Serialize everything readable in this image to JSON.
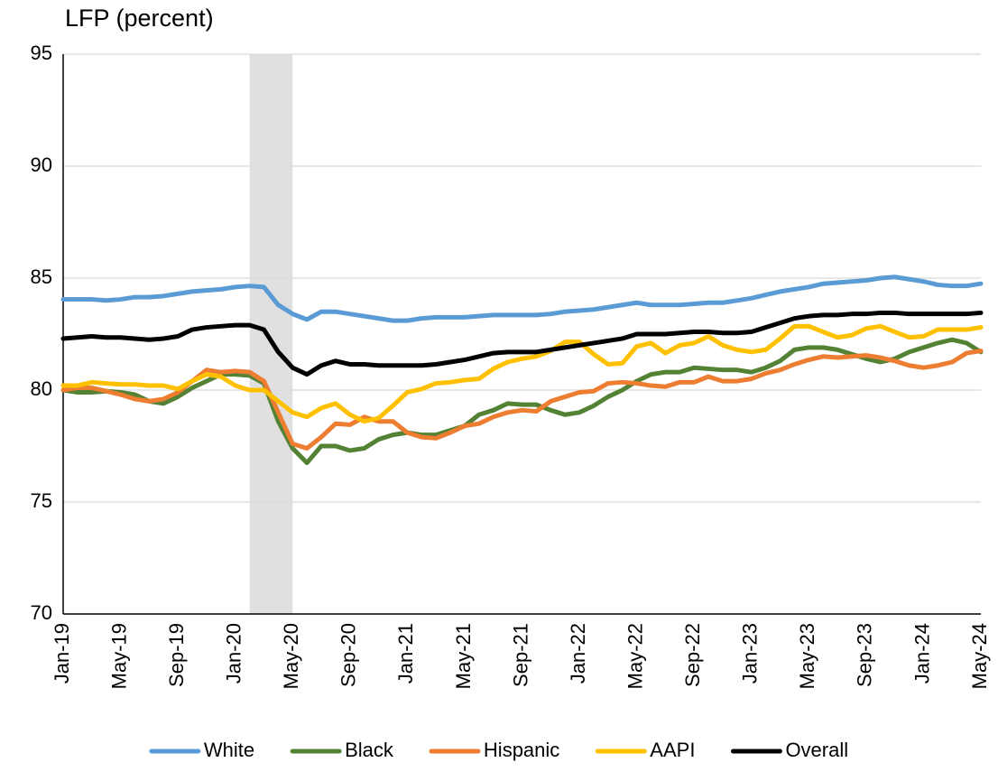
{
  "chart_data": {
    "type": "line",
    "title": "LFP (percent)",
    "categories": [
      "Jan-19",
      null,
      null,
      null,
      "May-19",
      null,
      null,
      null,
      "Sep-19",
      null,
      null,
      null,
      "Jan-20",
      null,
      null,
      null,
      "May-20",
      null,
      null,
      null,
      "Sep-20",
      null,
      null,
      null,
      "Jan-21",
      null,
      null,
      null,
      "May-21",
      null,
      null,
      null,
      "Sep-21",
      null,
      null,
      null,
      "Jan-22",
      null,
      null,
      null,
      "May-22",
      null,
      null,
      null,
      "Sep-22",
      null,
      null,
      null,
      "Jan-23",
      null,
      null,
      null,
      "May-23",
      null,
      null,
      null,
      "Sep-23",
      null,
      null,
      null,
      "Jan-24",
      null,
      null,
      null,
      "May-24"
    ],
    "shaded_range": [
      13,
      16
    ],
    "shade_color": "#e0e0e0",
    "ylim": [
      70,
      95
    ],
    "yticks": [
      70,
      75,
      80,
      85,
      90,
      95
    ],
    "grid": true,
    "legend": "bottom",
    "series": [
      {
        "name": "White",
        "color": "#5b9bd5",
        "values": [
          84.05,
          84.05,
          84.05,
          84.0,
          84.05,
          84.15,
          84.15,
          84.2,
          84.3,
          84.4,
          84.45,
          84.5,
          84.6,
          84.65,
          84.6,
          83.8,
          83.4,
          83.15,
          83.5,
          83.5,
          83.4,
          83.3,
          83.2,
          83.1,
          83.1,
          83.2,
          83.25,
          83.25,
          83.25,
          83.3,
          83.35,
          83.35,
          83.35,
          83.35,
          83.4,
          83.5,
          83.55,
          83.6,
          83.7,
          83.8,
          83.9,
          83.8,
          83.8,
          83.8,
          83.85,
          83.9,
          83.9,
          84.0,
          84.1,
          84.25,
          84.4,
          84.5,
          84.6,
          84.75,
          84.8,
          84.85,
          84.9,
          85.0,
          85.05,
          84.95,
          84.85,
          84.7,
          84.65,
          84.65,
          84.75
        ]
      },
      {
        "name": "Black",
        "color": "#548235",
        "values": [
          80.0,
          79.9,
          79.9,
          79.95,
          79.9,
          79.8,
          79.5,
          79.4,
          79.7,
          80.1,
          80.4,
          80.7,
          80.7,
          80.65,
          80.3,
          78.6,
          77.4,
          76.75,
          77.5,
          77.5,
          77.3,
          77.4,
          77.8,
          78.0,
          78.1,
          78.0,
          78.0,
          78.2,
          78.4,
          78.9,
          79.1,
          79.4,
          79.35,
          79.35,
          79.1,
          78.9,
          79.0,
          79.3,
          79.7,
          80.0,
          80.4,
          80.7,
          80.8,
          80.8,
          81.0,
          80.95,
          80.9,
          80.9,
          80.8,
          81.0,
          81.3,
          81.8,
          81.9,
          81.9,
          81.8,
          81.6,
          81.4,
          81.25,
          81.4,
          81.7,
          81.9,
          82.1,
          82.25,
          82.1,
          81.7
        ]
      },
      {
        "name": "Hispanic",
        "color": "#ed7d31",
        "values": [
          80.0,
          80.1,
          80.1,
          79.95,
          79.8,
          79.6,
          79.5,
          79.6,
          79.9,
          80.4,
          80.9,
          80.8,
          80.85,
          80.8,
          80.4,
          79.0,
          77.6,
          77.4,
          77.9,
          78.5,
          78.45,
          78.8,
          78.6,
          78.6,
          78.1,
          77.9,
          77.85,
          78.1,
          78.4,
          78.5,
          78.8,
          79.0,
          79.1,
          79.05,
          79.5,
          79.7,
          79.9,
          79.95,
          80.3,
          80.35,
          80.3,
          80.2,
          80.15,
          80.35,
          80.35,
          80.6,
          80.4,
          80.4,
          80.5,
          80.75,
          80.9,
          81.15,
          81.35,
          81.5,
          81.45,
          81.5,
          81.55,
          81.45,
          81.3,
          81.1,
          81.0,
          81.1,
          81.25,
          81.65,
          81.75
        ]
      },
      {
        "name": "AAPI",
        "color": "#ffc000",
        "values": [
          80.2,
          80.2,
          80.35,
          80.3,
          80.25,
          80.25,
          80.2,
          80.2,
          80.05,
          80.4,
          80.7,
          80.6,
          80.2,
          80.0,
          80.0,
          79.5,
          79.0,
          78.8,
          79.2,
          79.4,
          78.9,
          78.6,
          78.75,
          79.3,
          79.9,
          80.05,
          80.3,
          80.35,
          80.45,
          80.5,
          80.95,
          81.25,
          81.4,
          81.5,
          81.75,
          82.15,
          82.15,
          81.6,
          81.15,
          81.2,
          81.95,
          82.1,
          81.65,
          82.0,
          82.1,
          82.4,
          82.0,
          81.8,
          81.7,
          81.8,
          82.3,
          82.85,
          82.85,
          82.6,
          82.35,
          82.45,
          82.75,
          82.85,
          82.6,
          82.35,
          82.4,
          82.7,
          82.7,
          82.7,
          82.8
        ]
      },
      {
        "name": "Overall",
        "color": "#000000",
        "values": [
          82.3,
          82.35,
          82.4,
          82.35,
          82.35,
          82.3,
          82.25,
          82.3,
          82.4,
          82.7,
          82.8,
          82.85,
          82.9,
          82.9,
          82.7,
          81.7,
          81.0,
          80.7,
          81.1,
          81.3,
          81.15,
          81.15,
          81.1,
          81.1,
          81.1,
          81.1,
          81.15,
          81.25,
          81.35,
          81.5,
          81.65,
          81.7,
          81.7,
          81.7,
          81.8,
          81.9,
          82.0,
          82.1,
          82.2,
          82.3,
          82.5,
          82.5,
          82.5,
          82.55,
          82.6,
          82.6,
          82.55,
          82.55,
          82.6,
          82.8,
          83.0,
          83.2,
          83.3,
          83.35,
          83.35,
          83.4,
          83.4,
          83.45,
          83.45,
          83.4,
          83.4,
          83.4,
          83.4,
          83.4,
          83.45
        ]
      }
    ]
  }
}
